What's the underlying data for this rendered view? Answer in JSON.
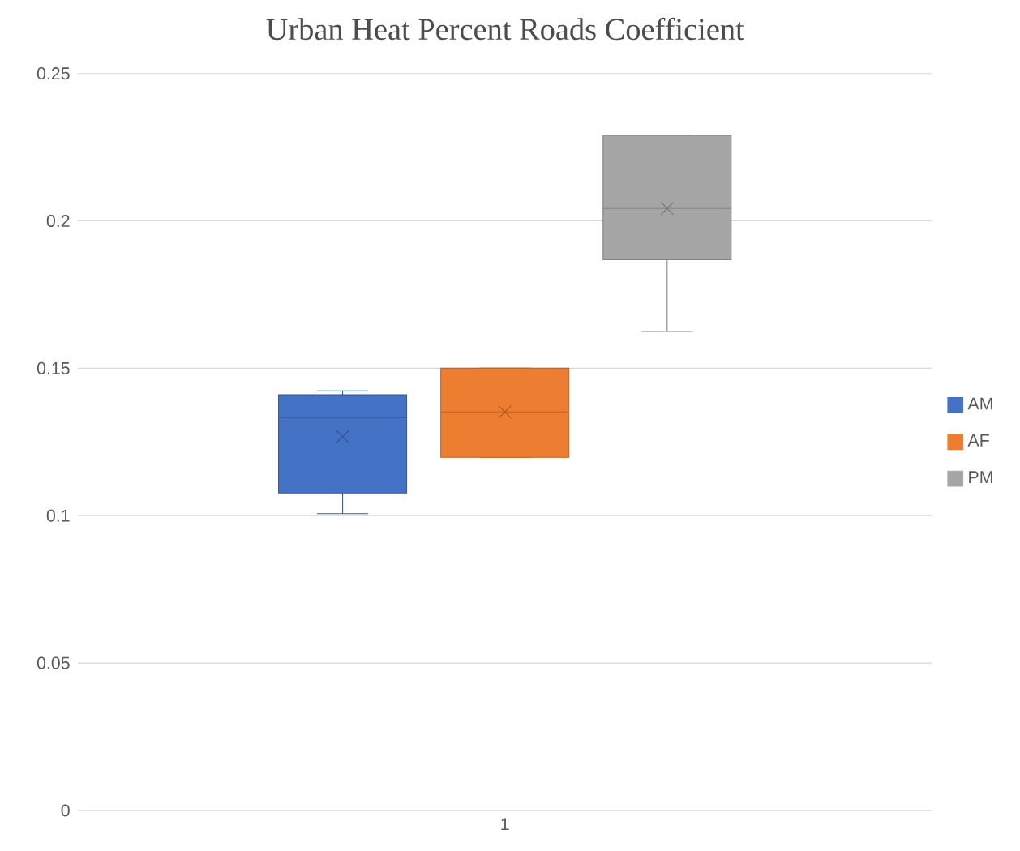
{
  "chart_data": {
    "type": "box",
    "title": "Urban Heat Percent Roads Coefficient",
    "categories": [
      "1"
    ],
    "series": [
      {
        "name": "AM",
        "color": "#4472c4",
        "boxes": [
          {
            "low": 0.1007,
            "q1": 0.1077,
            "median": 0.1333,
            "q3": 0.141,
            "high": 0.1423,
            "mean": 0.1268
          }
        ]
      },
      {
        "name": "AF",
        "color": "#ed7d31",
        "boxes": [
          {
            "low": 0.1198,
            "q1": 0.1198,
            "median": 0.1352,
            "q3": 0.15,
            "high": 0.15,
            "mean": 0.1352
          }
        ]
      },
      {
        "name": "PM",
        "color": "#a5a5a5",
        "boxes": [
          {
            "low": 0.1625,
            "q1": 0.1868,
            "median": 0.2042,
            "q3": 0.229,
            "high": 0.229,
            "mean": 0.2042
          }
        ]
      }
    ],
    "ylim": [
      0,
      0.25
    ],
    "yticks": [
      0,
      0.05,
      0.1,
      0.15,
      0.2,
      0.25
    ],
    "grid": "y",
    "legend": "right",
    "marker": "cross"
  }
}
